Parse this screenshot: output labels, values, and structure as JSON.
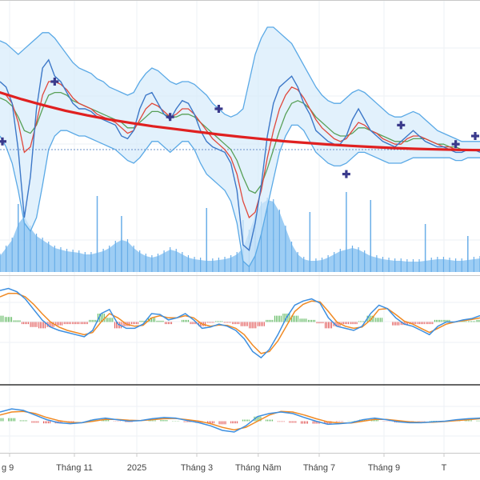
{
  "colors": {
    "background": "#ffffff",
    "grid": "#eef1f5",
    "panel_border": "#c8c8c8",
    "separator": "#333333",
    "band": "#5aa9e6",
    "band_fill": "#d6ebfb",
    "price": "#3d78c8",
    "ma_fast": "#e0483c",
    "ma_slow": "#58a058",
    "trend": "#e02020",
    "marker": "#3a3a8c",
    "volume": "#8cc4f2",
    "volume_bar": "#6aaee8",
    "macd_line": "#3d8fe0",
    "signal_line": "#f08a24",
    "hist_pos": "#5ab65a",
    "hist_neg": "#e05050",
    "reference_line": "#6a90c8"
  },
  "chart_data": {
    "type": "line",
    "x_axis": {
      "ticks": [
        {
          "label": "g 9",
          "pos": 0.0
        },
        {
          "label": "Tháng 11",
          "pos": 0.135
        },
        {
          "label": "2025",
          "pos": 0.265
        },
        {
          "label": "Tháng 3",
          "pos": 0.39
        },
        {
          "label": "Tháng Năm",
          "pos": 0.518
        },
        {
          "label": "Tháng 7",
          "pos": 0.645
        },
        {
          "label": "Tháng 9",
          "pos": 0.78
        },
        {
          "label": "T",
          "pos": 0.905
        }
      ]
    },
    "price_panel": {
      "ylim": [
        0,
        100
      ],
      "reference_level": 45,
      "price": [
        70,
        68,
        62,
        45,
        20,
        35,
        60,
        75,
        78,
        72,
        70,
        66,
        62,
        60,
        60,
        59,
        57,
        56,
        55,
        54,
        50,
        49,
        52,
        60,
        65,
        66,
        62,
        58,
        56,
        60,
        63,
        62,
        58,
        52,
        48,
        46,
        45,
        44,
        40,
        30,
        10,
        8,
        18,
        32,
        50,
        62,
        68,
        70,
        72,
        68,
        62,
        58,
        52,
        50,
        48,
        47,
        47,
        50,
        56,
        60,
        56,
        52,
        50,
        48,
        47,
        46,
        48,
        50,
        52,
        50,
        48,
        47,
        46,
        46,
        45,
        44,
        44,
        45,
        45,
        44
      ],
      "ma_fast": [
        66,
        65,
        62,
        55,
        44,
        46,
        55,
        65,
        70,
        70,
        69,
        67,
        64,
        62,
        61,
        60,
        58,
        57,
        56,
        55,
        53,
        51,
        52,
        56,
        60,
        62,
        61,
        59,
        57,
        58,
        60,
        60,
        58,
        55,
        52,
        49,
        47,
        45,
        42,
        36,
        26,
        20,
        22,
        30,
        42,
        52,
        60,
        65,
        68,
        67,
        64,
        60,
        56,
        53,
        51,
        49,
        48,
        49,
        52,
        55,
        54,
        52,
        51,
        49,
        48,
        47,
        47,
        49,
        50,
        50,
        49,
        48,
        47,
        46,
        46,
        45,
        45,
        45,
        45,
        45
      ],
      "ma_slow": [
        64,
        63,
        61,
        57,
        52,
        51,
        54,
        60,
        65,
        66,
        66,
        65,
        63,
        62,
        61,
        60,
        59,
        58,
        57,
        56,
        55,
        53,
        53,
        55,
        57,
        59,
        59,
        58,
        57,
        57,
        58,
        58,
        57,
        55,
        53,
        51,
        49,
        47,
        45,
        41,
        35,
        30,
        29,
        32,
        38,
        45,
        52,
        58,
        62,
        63,
        62,
        60,
        57,
        55,
        53,
        51,
        50,
        50,
        51,
        53,
        53,
        52,
        51,
        50,
        49,
        48,
        48,
        48,
        49,
        49,
        49,
        48,
        47,
        47,
        46,
        46,
        45,
        45,
        45,
        45
      ],
      "band_upper": [
        85,
        84,
        82,
        80,
        82,
        84,
        86,
        88,
        88,
        86,
        83,
        80,
        77,
        75,
        74,
        73,
        71,
        70,
        68,
        67,
        66,
        65,
        66,
        70,
        73,
        75,
        74,
        72,
        70,
        69,
        70,
        70,
        69,
        67,
        65,
        62,
        60,
        58,
        57,
        58,
        60,
        70,
        80,
        86,
        90,
        90,
        88,
        86,
        84,
        80,
        76,
        72,
        68,
        65,
        63,
        62,
        62,
        64,
        66,
        67,
        66,
        64,
        62,
        60,
        58,
        57,
        57,
        58,
        59,
        58,
        56,
        54,
        52,
        51,
        50,
        49,
        48,
        48,
        48,
        48
      ],
      "band_lower": [
        50,
        46,
        40,
        30,
        18,
        15,
        20,
        32,
        45,
        50,
        52,
        52,
        51,
        50,
        50,
        49,
        48,
        47,
        46,
        45,
        43,
        41,
        40,
        42,
        45,
        48,
        48,
        46,
        44,
        46,
        48,
        48,
        45,
        40,
        36,
        34,
        32,
        30,
        26,
        18,
        4,
        2,
        6,
        14,
        24,
        34,
        44,
        50,
        54,
        54,
        52,
        48,
        44,
        42,
        40,
        39,
        39,
        40,
        42,
        44,
        44,
        43,
        42,
        41,
        40,
        40,
        40,
        41,
        42,
        42,
        42,
        42,
        42,
        42,
        42,
        41,
        41,
        42,
        42,
        42
      ],
      "trend": [
        66,
        63.5,
        61.3,
        59.3,
        57.6,
        56.1,
        54.8,
        53.6,
        52.6,
        51.6,
        50.6,
        49.7,
        48.9,
        48.1,
        47.5,
        46.9,
        46.4,
        46,
        45.6,
        45.3,
        45.1,
        44.9,
        44.8
      ],
      "markers": [
        {
          "i": 0,
          "y": 48
        },
        {
          "i": 9,
          "y": 70
        },
        {
          "i": 28,
          "y": 57
        },
        {
          "i": 36,
          "y": 60
        },
        {
          "i": 57,
          "y": 36
        },
        {
          "i": 66,
          "y": 54
        },
        {
          "i": 75,
          "y": 47
        },
        {
          "i": 83,
          "y": 50
        }
      ]
    },
    "volume_panel": {
      "ylim": [
        0,
        100
      ],
      "area": [
        20,
        30,
        40,
        60,
        70,
        55,
        45,
        40,
        35,
        30,
        28,
        26,
        25,
        24,
        22,
        22,
        24,
        26,
        30,
        36,
        40,
        38,
        30,
        24,
        20,
        18,
        20,
        24,
        28,
        26,
        22,
        18,
        16,
        15,
        14,
        14,
        15,
        16,
        18,
        22,
        30,
        50,
        70,
        85,
        90,
        88,
        75,
        55,
        35,
        22,
        16,
        14,
        14,
        15,
        18,
        22,
        26,
        28,
        30,
        28,
        24,
        20,
        18,
        16,
        15,
        14,
        14,
        13,
        13,
        13,
        14,
        15,
        16,
        16,
        15,
        14,
        14,
        15,
        16,
        17
      ],
      "spikes": [
        {
          "i": 3,
          "v": 85
        },
        {
          "i": 16,
          "v": 95
        },
        {
          "i": 20,
          "v": 70
        },
        {
          "i": 34,
          "v": 80
        },
        {
          "i": 40,
          "v": 65
        },
        {
          "i": 51,
          "v": 75
        },
        {
          "i": 57,
          "v": 100
        },
        {
          "i": 61,
          "v": 90
        },
        {
          "i": 70,
          "v": 60
        },
        {
          "i": 77,
          "v": 45
        }
      ]
    },
    "macd_panel_1": {
      "ylim": [
        -1,
        1
      ],
      "macd": [
        0.75,
        0.8,
        0.72,
        0.55,
        0.3,
        0.05,
        -0.12,
        -0.2,
        -0.25,
        -0.3,
        -0.35,
        -0.2,
        0.2,
        0.3,
        -0.05,
        -0.15,
        -0.15,
        -0.05,
        0.2,
        0.18,
        0.05,
        0.1,
        0.2,
        0.05,
        -0.15,
        -0.12,
        -0.05,
        -0.1,
        -0.2,
        -0.4,
        -0.7,
        -0.85,
        -0.65,
        -0.3,
        0.1,
        0.4,
        0.5,
        0.55,
        0.45,
        0.1,
        -0.1,
        -0.15,
        -0.2,
        -0.1,
        0.2,
        0.4,
        0.32,
        0.1,
        -0.05,
        -0.1,
        -0.2,
        -0.3,
        -0.1,
        0.0,
        0.0,
        0.05,
        0.08,
        0.15
      ],
      "signal": [
        0.6,
        0.68,
        0.68,
        0.6,
        0.42,
        0.2,
        0.0,
        -0.12,
        -0.2,
        -0.25,
        -0.3,
        -0.25,
        0.0,
        0.2,
        0.1,
        -0.05,
        -0.1,
        -0.08,
        0.1,
        0.15,
        0.1,
        0.1,
        0.15,
        0.1,
        -0.05,
        -0.1,
        -0.07,
        -0.08,
        -0.15,
        -0.3,
        -0.55,
        -0.75,
        -0.7,
        -0.45,
        -0.1,
        0.25,
        0.42,
        0.5,
        0.48,
        0.25,
        0.0,
        -0.1,
        -0.15,
        -0.12,
        0.05,
        0.3,
        0.32,
        0.18,
        0.02,
        -0.05,
        -0.15,
        -0.25,
        -0.15,
        -0.05,
        0.0,
        0.03,
        0.06,
        0.1
      ]
    },
    "macd_panel_2": {
      "ylim": [
        -1,
        1
      ],
      "macd": [
        0.3,
        0.4,
        0.35,
        0.2,
        0.05,
        -0.05,
        -0.08,
        -0.05,
        0.05,
        0.1,
        0.05,
        0.0,
        0.02,
        0.08,
        0.12,
        0.1,
        0.02,
        -0.05,
        -0.15,
        -0.3,
        -0.35,
        -0.15,
        0.15,
        0.25,
        0.3,
        0.25,
        0.12,
        0.0,
        -0.1,
        -0.08,
        -0.05,
        0.05,
        0.1,
        0.05,
        -0.02,
        -0.05,
        -0.05,
        -0.02,
        0.0,
        0.05,
        0.08,
        0.1
      ],
      "signal": [
        0.2,
        0.3,
        0.32,
        0.25,
        0.12,
        0.02,
        -0.04,
        -0.05,
        0.0,
        0.06,
        0.06,
        0.03,
        0.02,
        0.05,
        0.08,
        0.09,
        0.05,
        0.0,
        -0.08,
        -0.2,
        -0.28,
        -0.2,
        0.0,
        0.2,
        0.32,
        0.3,
        0.2,
        0.08,
        -0.02,
        -0.06,
        -0.06,
        0.0,
        0.06,
        0.06,
        0.02,
        -0.02,
        -0.04,
        -0.03,
        -0.01,
        0.02,
        0.05,
        0.08
      ]
    }
  }
}
